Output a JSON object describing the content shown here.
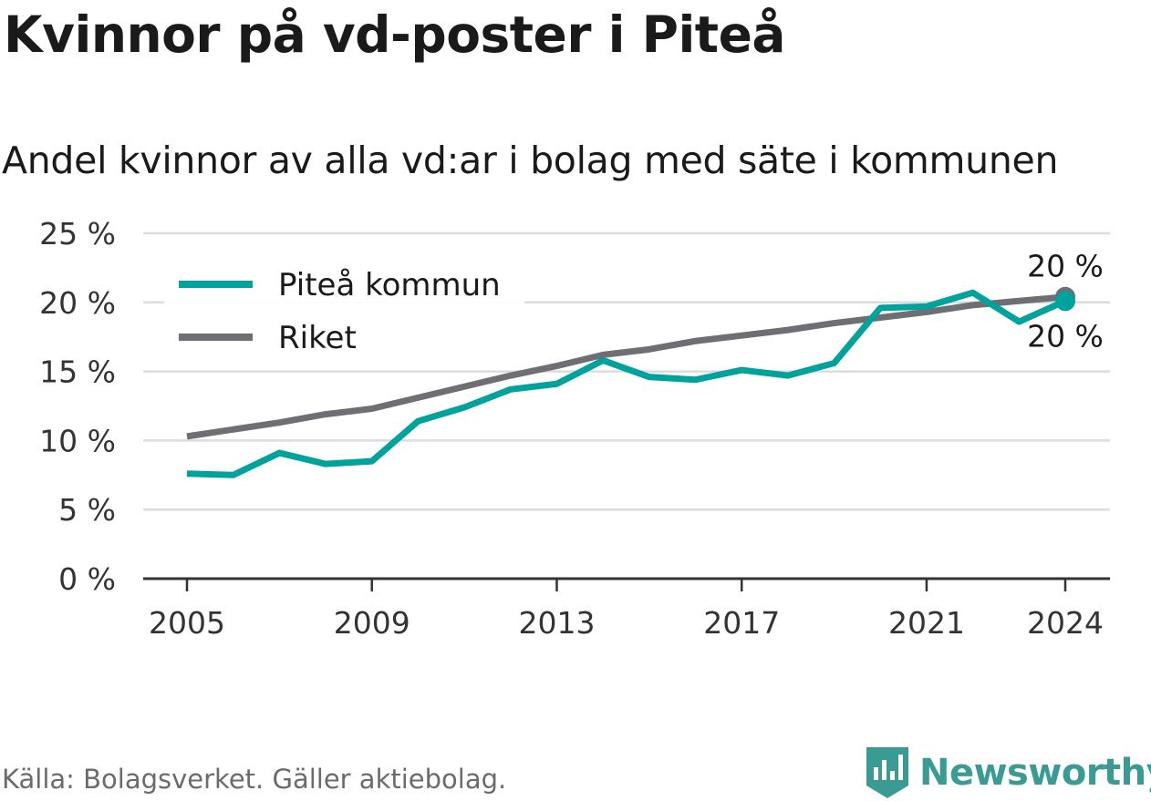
{
  "title": "Kvinnor på vd-poster i Piteå",
  "subtitle": "Andel kvinnor av alla vd:ar i bolag med säte i kommunen",
  "source": "Källa: Bolagsverket. Gäller aktiebolag.",
  "brand": {
    "name": "Newsworthy",
    "color": "#3a9b93"
  },
  "chart_data": {
    "type": "line",
    "x": [
      2005,
      2006,
      2007,
      2008,
      2009,
      2010,
      2011,
      2012,
      2013,
      2014,
      2015,
      2016,
      2017,
      2018,
      2019,
      2020,
      2021,
      2022,
      2023,
      2024
    ],
    "x_ticks": [
      2005,
      2009,
      2013,
      2017,
      2021,
      2024
    ],
    "y_ticks": [
      0,
      5,
      10,
      15,
      20,
      25
    ],
    "y_tick_labels": [
      "0 %",
      "5 %",
      "10 %",
      "15 %",
      "20 %",
      "25 %"
    ],
    "ylim": [
      0,
      25
    ],
    "grid": true,
    "legend_position": "top-left",
    "series": [
      {
        "name": "Piteå kommun",
        "color": "#00a39b",
        "values": [
          7.6,
          7.5,
          9.1,
          8.3,
          8.5,
          11.4,
          12.4,
          13.7,
          14.1,
          15.8,
          14.6,
          14.4,
          15.1,
          14.7,
          15.6,
          19.6,
          19.7,
          20.7,
          18.6,
          20.1
        ],
        "end_label": "20 %"
      },
      {
        "name": "Riket",
        "color": "#6e6e73",
        "values": [
          10.3,
          10.8,
          11.3,
          11.9,
          12.3,
          13.1,
          13.9,
          14.7,
          15.4,
          16.2,
          16.6,
          17.2,
          17.6,
          18.0,
          18.5,
          18.9,
          19.3,
          19.8,
          20.1,
          20.4
        ],
        "end_label": "20 %"
      }
    ]
  }
}
